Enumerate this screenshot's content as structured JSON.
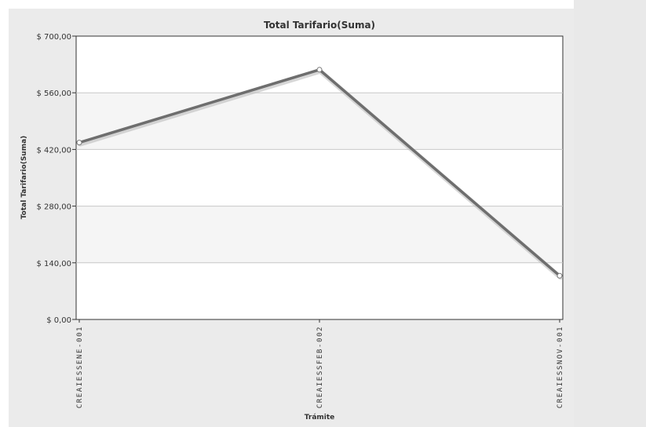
{
  "chart_data": {
    "type": "line",
    "title": "Total Tarifario(Suma)",
    "xlabel": "Trámite",
    "ylabel": "Total Tarifario(Suma)",
    "categories": [
      "CREAIESSENE-001",
      "CREAIESSFEB-002",
      "CREAIESSNOV-001"
    ],
    "values": [
      437,
      617,
      108
    ],
    "ylim": [
      0,
      700
    ],
    "yticks": [
      0,
      140,
      280,
      420,
      560,
      700
    ],
    "ytick_labels": [
      "$ 0,00",
      "$ 140,00",
      "$ 280,00",
      "$ 420,00",
      "$ 560,00",
      "$ 700,00"
    ],
    "grid": true,
    "legend": "none",
    "colors": {
      "line": "#6e6e6e",
      "plot_band": "#f5f5f5",
      "grid": "#c8c8c8",
      "marker_fill": "#ffffff"
    }
  }
}
